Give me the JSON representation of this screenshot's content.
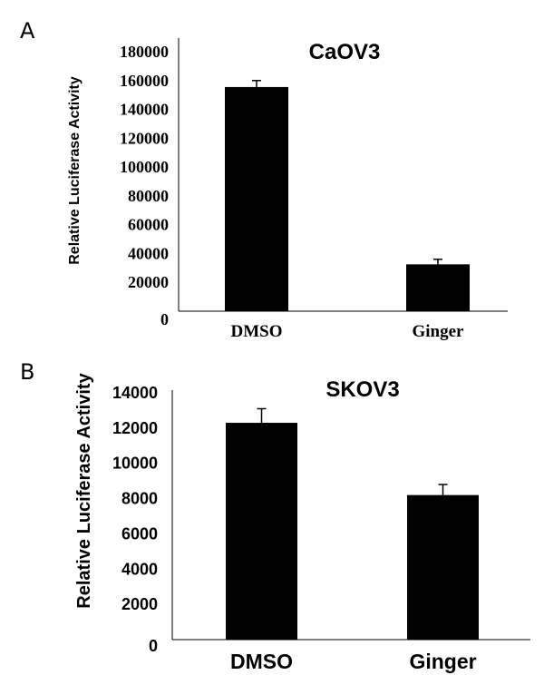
{
  "chart_data": [
    {
      "panel": "A",
      "type": "bar",
      "title": "CaOV3",
      "ylabel": "Relative Luciferase Activity",
      "xlabel": "",
      "categories": [
        "DMSO",
        "Ginger"
      ],
      "values": [
        155500,
        32500
      ],
      "errors": [
        4500,
        3500
      ],
      "ylim": [
        0,
        180000
      ],
      "yticks": [
        "0",
        "20000",
        "40000",
        "60000",
        "80000",
        "100000",
        "120000",
        "140000",
        "160000",
        "180000"
      ],
      "bar_color": "#000000",
      "grid": false
    },
    {
      "panel": "B",
      "type": "bar",
      "title": "SKOV3",
      "ylabel": "Relative Luciferase Activity",
      "xlabel": "",
      "categories": [
        "DMSO",
        "Ginger"
      ],
      "values": [
        12300,
        8200
      ],
      "errors": [
        800,
        600
      ],
      "ylim": [
        0,
        14000
      ],
      "yticks": [
        "0",
        "2000",
        "4000",
        "6000",
        "8000",
        "10000",
        "12000",
        "14000"
      ],
      "bar_color": "#000000",
      "grid": false
    }
  ]
}
